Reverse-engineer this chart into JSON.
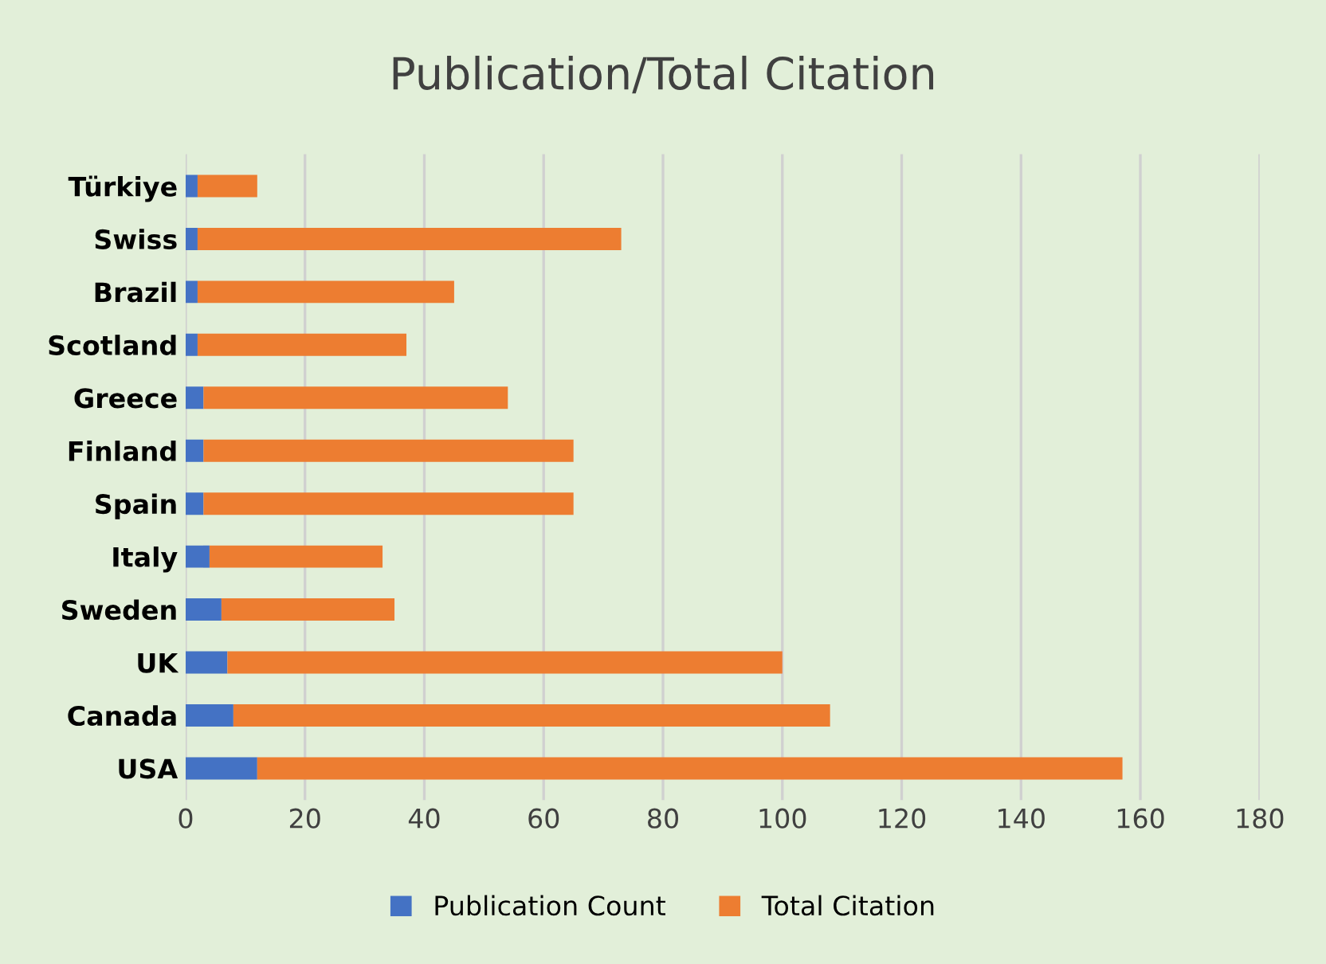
{
  "chart_data": {
    "type": "bar",
    "orientation": "horizontal",
    "stacked": true,
    "title": "Publication/Total Citation",
    "categories": [
      "Türkiye",
      "Swiss",
      "Brazil",
      "Scotland",
      "Greece",
      "Finland",
      "Spain",
      "Italy",
      "Sweden",
      "UK",
      "Canada",
      "USA"
    ],
    "series": [
      {
        "name": "Publication Count",
        "color": "#4472c4",
        "values": [
          2,
          2,
          2,
          2,
          3,
          3,
          3,
          4,
          6,
          7,
          8,
          12
        ]
      },
      {
        "name": "Total Citation",
        "color": "#ed7d31",
        "values": [
          10,
          71,
          43,
          35,
          51,
          62,
          62,
          29,
          29,
          93,
          100,
          145
        ]
      }
    ],
    "xlim": [
      0,
      180
    ],
    "xticks": [
      0,
      20,
      40,
      60,
      80,
      100,
      120,
      140,
      160,
      180
    ],
    "grid": "x",
    "legend": "bottom"
  }
}
